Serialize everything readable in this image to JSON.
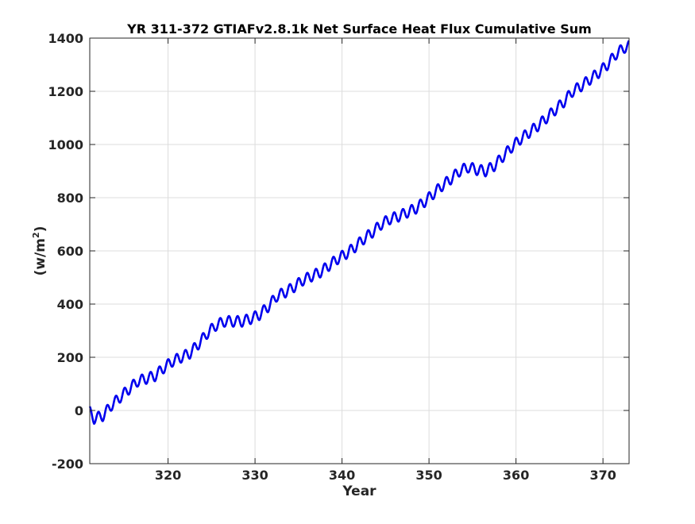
{
  "chart_data": {
    "type": "line",
    "title": "YR 311-372 GTIAFv2.8.1k Net Surface Heat Flux  Cumulative Sum",
    "xlabel": "Year",
    "ylabel_base": "(w/m",
    "ylabel_sup": "2",
    "ylabel_end": ")",
    "xlim": [
      311,
      373
    ],
    "ylim": [
      -200,
      1400
    ],
    "xticks": [
      320,
      330,
      340,
      350,
      360,
      370
    ],
    "xtick_labels": [
      "320",
      "330",
      "340",
      "350",
      "360",
      "370"
    ],
    "yticks": [
      -200,
      0,
      200,
      400,
      600,
      800,
      1000,
      1200,
      1400
    ],
    "ytick_labels": [
      "-200",
      "0",
      "200",
      "400",
      "600",
      "800",
      "1000",
      "1200",
      "1400"
    ],
    "grid": true,
    "series": [
      {
        "color": "#0000ee",
        "seasonal_amplitude": 20,
        "x": [
          311.0,
          311.5,
          312.5,
          313.5,
          314.5,
          315.5,
          316.5,
          317.5,
          318.5,
          319.5,
          320.5,
          321.5,
          322.5,
          323.5,
          324.5,
          325.5,
          326.5,
          327.5,
          328.5,
          329.5,
          330.5,
          331.5,
          332.5,
          333.5,
          334.5,
          335.5,
          336.5,
          337.5,
          338.5,
          339.5,
          340.5,
          341.5,
          342.5,
          343.5,
          344.5,
          345.5,
          346.5,
          347.5,
          348.5,
          349.5,
          350.5,
          351.5,
          352.5,
          353.5,
          354.5,
          355.5,
          356.5,
          357.5,
          358.5,
          359.5,
          360.5,
          361.5,
          362.5,
          363.5,
          364.5,
          365.5,
          366.5,
          367.5,
          368.5,
          369.5,
          370.5,
          371.5,
          372.5,
          373.0
        ],
        "y": [
          -5,
          -30,
          -20,
          20,
          50,
          80,
          110,
          120,
          130,
          160,
          185,
          200,
          215,
          250,
          290,
          320,
          335,
          335,
          335,
          345,
          360,
          390,
          430,
          445,
          465,
          490,
          505,
          520,
          545,
          570,
          590,
          615,
          645,
          670,
          700,
          720,
          730,
          745,
          760,
          785,
          815,
          845,
          870,
          900,
          915,
          905,
          900,
          920,
          955,
          990,
          1020,
          1045,
          1070,
          1100,
          1130,
          1160,
          1200,
          1220,
          1245,
          1270,
          1300,
          1340,
          1365,
          1370
        ]
      }
    ]
  }
}
